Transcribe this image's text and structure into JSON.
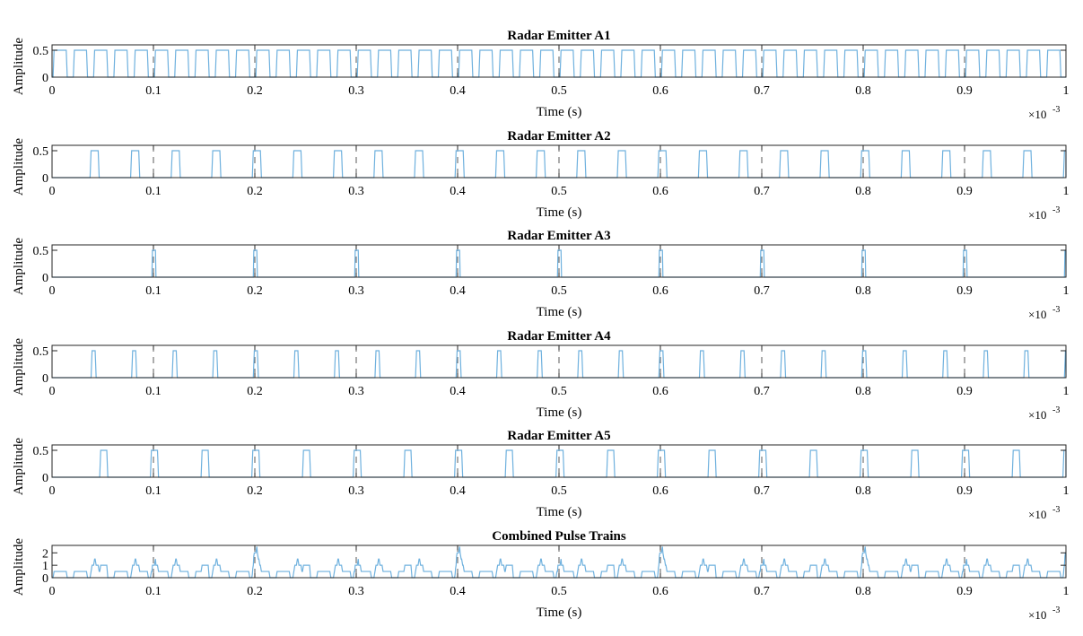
{
  "chart_data": [
    {
      "type": "line",
      "title": "Radar Emitter A1",
      "xlabel": "Time (s)",
      "ylabel": "Amplitude",
      "x_exponent": "×10",
      "x_exponent_power": "-3",
      "xlim": [
        0,
        0.001
      ],
      "ylim": [
        0,
        0.6
      ],
      "xticks": [
        0,
        0.0001,
        0.0002,
        0.0003,
        0.0004,
        0.0005,
        0.0006,
        0.0007,
        0.0008,
        0.0009,
        0.001
      ],
      "xtick_labels": [
        "0",
        "0.1",
        "0.2",
        "0.3",
        "0.4",
        "0.5",
        "0.6",
        "0.7",
        "0.8",
        "0.9",
        "1"
      ],
      "yticks": [
        0,
        0.5
      ],
      "ytick_labels": [
        "0",
        "0.5"
      ],
      "color": "#6fb1de",
      "pulse": {
        "amplitude": 0.5,
        "period": 2e-05,
        "start": 1e-06,
        "width": 1.2e-05,
        "rise": 1e-06
      }
    },
    {
      "type": "line",
      "title": "Radar Emitter A2",
      "xlabel": "Time (s)",
      "ylabel": "Amplitude",
      "x_exponent": "×10",
      "x_exponent_power": "-3",
      "xlim": [
        0,
        0.001
      ],
      "ylim": [
        0,
        0.6
      ],
      "xticks": [
        0,
        0.0001,
        0.0002,
        0.0003,
        0.0004,
        0.0005,
        0.0006,
        0.0007,
        0.0008,
        0.0009,
        0.001
      ],
      "xtick_labels": [
        "0",
        "0.1",
        "0.2",
        "0.3",
        "0.4",
        "0.5",
        "0.6",
        "0.7",
        "0.8",
        "0.9",
        "1"
      ],
      "yticks": [
        0,
        0.5
      ],
      "ytick_labels": [
        "0",
        "0.5"
      ],
      "color": "#6fb1de",
      "pulse": {
        "amplitude": 0.5,
        "period": 4e-05,
        "start": 3.75e-05,
        "width": 7e-06,
        "rise": 1e-06
      }
    },
    {
      "type": "line",
      "title": "Radar Emitter A3",
      "xlabel": "Time (s)",
      "ylabel": "Amplitude",
      "x_exponent": "×10",
      "x_exponent_power": "-3",
      "xlim": [
        0,
        0.001
      ],
      "ylim": [
        0,
        0.6
      ],
      "xticks": [
        0,
        0.0001,
        0.0002,
        0.0003,
        0.0004,
        0.0005,
        0.0006,
        0.0007,
        0.0008,
        0.0009,
        0.001
      ],
      "xtick_labels": [
        "0",
        "0.1",
        "0.2",
        "0.3",
        "0.4",
        "0.5",
        "0.6",
        "0.7",
        "0.8",
        "0.9",
        "1"
      ],
      "yticks": [
        0,
        0.5
      ],
      "ytick_labels": [
        "0",
        "0.5"
      ],
      "color": "#6fb1de",
      "pulse": {
        "amplitude": 0.5,
        "period": 0.0001,
        "start": 9.85e-05,
        "width": 3e-06,
        "rise": 5e-07
      }
    },
    {
      "type": "line",
      "title": "Radar Emitter A4",
      "xlabel": "Time (s)",
      "ylabel": "Amplitude",
      "x_exponent": "×10",
      "x_exponent_power": "-3",
      "xlim": [
        0,
        0.001
      ],
      "ylim": [
        0,
        0.6
      ],
      "xticks": [
        0,
        0.0001,
        0.0002,
        0.0003,
        0.0004,
        0.0005,
        0.0006,
        0.0007,
        0.0008,
        0.0009,
        0.001
      ],
      "xtick_labels": [
        "0",
        "0.1",
        "0.2",
        "0.3",
        "0.4",
        "0.5",
        "0.6",
        "0.7",
        "0.8",
        "0.9",
        "1"
      ],
      "yticks": [
        0,
        0.5
      ],
      "ytick_labels": [
        "0",
        "0.5"
      ],
      "color": "#6fb1de",
      "pulse": {
        "amplitude": 0.5,
        "period": 4e-05,
        "start": 3.85e-05,
        "width": 3e-06,
        "rise": 1e-06
      }
    },
    {
      "type": "line",
      "title": "Radar Emitter A5",
      "xlabel": "Time (s)",
      "ylabel": "Amplitude",
      "x_exponent": "×10",
      "x_exponent_power": "-3",
      "xlim": [
        0,
        0.001
      ],
      "ylim": [
        0,
        0.6
      ],
      "xticks": [
        0,
        0.0001,
        0.0002,
        0.0003,
        0.0004,
        0.0005,
        0.0006,
        0.0007,
        0.0008,
        0.0009,
        0.001
      ],
      "xtick_labels": [
        "0",
        "0.1",
        "0.2",
        "0.3",
        "0.4",
        "0.5",
        "0.6",
        "0.7",
        "0.8",
        "0.9",
        "1"
      ],
      "yticks": [
        0,
        0.5
      ],
      "ytick_labels": [
        "0",
        "0.5"
      ],
      "color": "#6fb1de",
      "pulse": {
        "amplitude": 0.5,
        "period": 5e-05,
        "start": 4.7e-05,
        "width": 6e-06,
        "rise": 1e-06
      }
    },
    {
      "type": "line",
      "title": "Combined Pulse Trains",
      "xlabel": "Time (s)",
      "ylabel": "Amplitude",
      "x_exponent": "×10",
      "x_exponent_power": "-3",
      "xlim": [
        0,
        0.001
      ],
      "ylim": [
        0,
        2.6
      ],
      "xticks": [
        0,
        0.0001,
        0.0002,
        0.0003,
        0.0004,
        0.0005,
        0.0006,
        0.0007,
        0.0008,
        0.0009,
        0.001
      ],
      "xtick_labels": [
        "0",
        "0.1",
        "0.2",
        "0.3",
        "0.4",
        "0.5",
        "0.6",
        "0.7",
        "0.8",
        "0.9",
        "1"
      ],
      "yticks": [
        0,
        1,
        2
      ],
      "ytick_labels": [
        "0",
        "1",
        "2"
      ],
      "color": "#6fb1de",
      "combined_of": [
        0,
        1,
        2,
        3,
        4
      ]
    }
  ]
}
